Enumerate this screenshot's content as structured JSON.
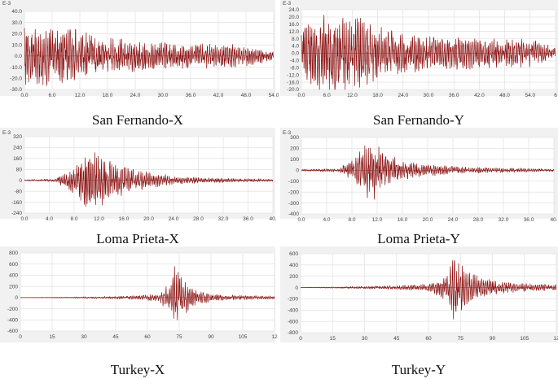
{
  "chart_data": [
    {
      "type": "line",
      "caption": "San Fernando-X",
      "y_unit": "E-3",
      "xlim": [
        0,
        58
      ],
      "ylim": [
        -30,
        40
      ],
      "x_ticks": [
        "0.0",
        "6.0",
        "12.0",
        "18.0",
        "24.0",
        "30.0",
        "36.0",
        "42.0",
        "48.0",
        "54.0"
      ],
      "y_ticks": [
        "40.0",
        "30.0",
        "20.0",
        "10.0",
        "0.0",
        "-10.0",
        "-20.0",
        "-30.0"
      ],
      "peak_y": [
        -30,
        30
      ],
      "envelope": [
        [
          0,
          0.9
        ],
        [
          2,
          1.0
        ],
        [
          10,
          0.9
        ],
        [
          20,
          0.55
        ],
        [
          30,
          0.42
        ],
        [
          40,
          0.4
        ],
        [
          50,
          0.35
        ],
        [
          54,
          0.25
        ],
        [
          58,
          0.15
        ]
      ],
      "grid": true,
      "color": "#8b1111"
    },
    {
      "type": "line",
      "caption": "San Fernando-Y",
      "y_unit": "E-3",
      "xlim": [
        0,
        60
      ],
      "ylim": [
        -20,
        24
      ],
      "x_ticks": [
        "0.0",
        "6.0",
        "12.0",
        "18.0",
        "24.0",
        "30.0",
        "36.0",
        "42.0",
        "48.0",
        "54.0",
        "6"
      ],
      "y_ticks": [
        "24.0",
        "20.0",
        "16.0",
        "12.0",
        "8.0",
        "4.0",
        "0.0",
        "-4.0",
        "-8.0",
        "-12.0",
        "-16.0",
        "-20.0"
      ],
      "peak_y": [
        -20,
        24
      ],
      "envelope": [
        [
          0,
          0.55
        ],
        [
          3,
          0.8
        ],
        [
          8,
          1.0
        ],
        [
          14,
          0.85
        ],
        [
          20,
          0.55
        ],
        [
          30,
          0.4
        ],
        [
          40,
          0.38
        ],
        [
          50,
          0.35
        ],
        [
          55,
          0.3
        ],
        [
          60,
          0.15
        ]
      ],
      "grid": true,
      "color": "#8b1111"
    },
    {
      "type": "line",
      "caption": "Loma Prieta-X",
      "y_unit": "E-3",
      "xlim": [
        0,
        40
      ],
      "ylim": [
        -240,
        320
      ],
      "x_ticks": [
        "0.0",
        "4.0",
        "8.0",
        "12.0",
        "16.0",
        "20.0",
        "24.0",
        "28.0",
        "32.0",
        "36.0",
        "40."
      ],
      "y_ticks": [
        "320",
        "240",
        "160",
        "80",
        "0",
        "-80",
        "-160",
        "-240"
      ],
      "peak_y": [
        -240,
        240
      ],
      "envelope": [
        [
          0,
          0.02
        ],
        [
          5,
          0.05
        ],
        [
          8,
          0.45
        ],
        [
          10,
          0.85
        ],
        [
          11.5,
          1.0
        ],
        [
          13,
          0.7
        ],
        [
          16,
          0.45
        ],
        [
          20,
          0.25
        ],
        [
          25,
          0.12
        ],
        [
          30,
          0.08
        ],
        [
          40,
          0.04
        ]
      ],
      "grid": true,
      "color": "#8b1111"
    },
    {
      "type": "line",
      "caption": "Loma Prieta-Y",
      "y_unit": "E-3",
      "xlim": [
        0,
        40
      ],
      "ylim": [
        -400,
        300
      ],
      "x_ticks": [
        "0.0",
        "4.0",
        "8.0",
        "12.0",
        "16.0",
        "20.0",
        "24.0",
        "28.0",
        "32.0",
        "36.0",
        "40."
      ],
      "y_ticks": [
        "300",
        "200",
        "100",
        "0",
        "-100",
        "-200",
        "-300",
        "-400"
      ],
      "peak_y": [
        -320,
        240
      ],
      "envelope": [
        [
          0,
          0.03
        ],
        [
          6,
          0.05
        ],
        [
          8,
          0.35
        ],
        [
          10,
          0.75
        ],
        [
          11,
          1.0
        ],
        [
          13,
          0.55
        ],
        [
          16,
          0.3
        ],
        [
          20,
          0.18
        ],
        [
          25,
          0.1
        ],
        [
          32,
          0.07
        ],
        [
          40,
          0.04
        ]
      ],
      "grid": true,
      "color": "#8b1111"
    },
    {
      "type": "line",
      "caption": "Turkey-X",
      "y_unit": "",
      "xlim": [
        0,
        120
      ],
      "ylim": [
        -600,
        800
      ],
      "x_ticks": [
        "0",
        "15",
        "30",
        "45",
        "60",
        "75",
        "90",
        "105",
        "12"
      ],
      "y_ticks": [
        "800",
        "600",
        "400",
        "200",
        "0",
        "-200",
        "-400",
        "-600"
      ],
      "peak_y": [
        -500,
        580
      ],
      "envelope": [
        [
          0,
          0.0
        ],
        [
          25,
          0.02
        ],
        [
          50,
          0.05
        ],
        [
          65,
          0.12
        ],
        [
          70,
          0.45
        ],
        [
          73,
          1.0
        ],
        [
          76,
          0.7
        ],
        [
          80,
          0.35
        ],
        [
          90,
          0.12
        ],
        [
          105,
          0.07
        ],
        [
          120,
          0.05
        ]
      ],
      "grid": true,
      "color": "#8b1111"
    },
    {
      "type": "line",
      "caption": "Turkey-Y",
      "y_unit": "",
      "xlim": [
        0,
        120
      ],
      "ylim": [
        -800,
        600
      ],
      "x_ticks": [
        "0",
        "15",
        "30",
        "45",
        "60",
        "75",
        "90",
        "105",
        "12"
      ],
      "y_ticks": [
        "600",
        "400",
        "200",
        "0",
        "-200",
        "-400",
        "-600",
        "-800"
      ],
      "peak_y": [
        -650,
        480
      ],
      "envelope": [
        [
          0,
          0.0
        ],
        [
          25,
          0.03
        ],
        [
          45,
          0.06
        ],
        [
          60,
          0.1
        ],
        [
          68,
          0.35
        ],
        [
          71,
          1.0
        ],
        [
          74,
          0.75
        ],
        [
          80,
          0.4
        ],
        [
          90,
          0.2
        ],
        [
          105,
          0.12
        ],
        [
          120,
          0.08
        ]
      ],
      "grid": true,
      "color": "#8b1111"
    }
  ]
}
